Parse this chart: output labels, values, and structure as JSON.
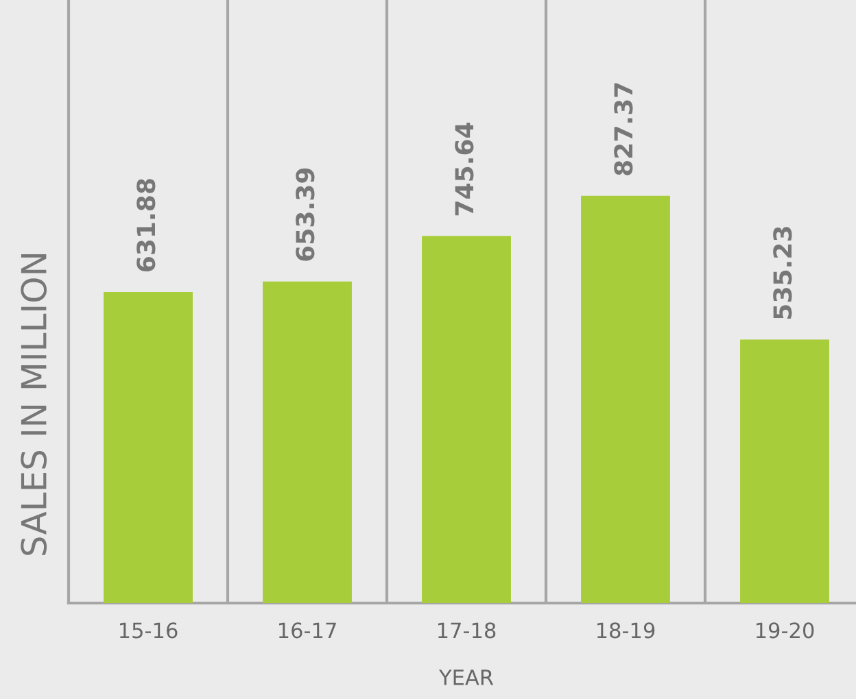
{
  "chart_data": {
    "type": "bar",
    "xlabel": "YEAR",
    "ylabel": "SALES IN MILLION",
    "categories": [
      "15-16",
      "16-17",
      "17-18",
      "18-19",
      "19-20"
    ],
    "values": [
      631.88,
      653.39,
      745.64,
      827.37,
      535.23
    ],
    "color": "#a8cd3a",
    "ylim": [
      0,
      1225
    ],
    "data_labels": true,
    "grid": "x",
    "legend": false
  }
}
